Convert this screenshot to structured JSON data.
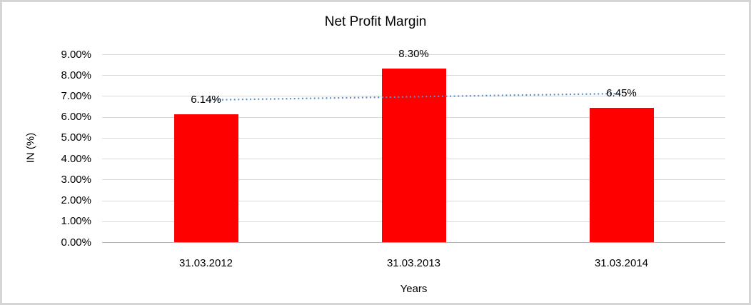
{
  "chart_data": {
    "type": "bar",
    "title": "Net Profit Margin",
    "xlabel": "Years",
    "ylabel": "IN (%)",
    "legend_position": "none",
    "grid": true,
    "ylim": [
      0,
      9
    ],
    "bar_color": "#FF0000",
    "gridline_color": "#D9D9D9",
    "axis_line_color": "#B3B3B3",
    "categories": [
      "31.03.2012",
      "31.03.2013",
      "31.03.2014"
    ],
    "values": [
      6.14,
      8.3,
      6.45
    ],
    "data_labels": [
      "6.14%",
      "8.30%",
      "6.45%"
    ],
    "yticks": [
      {
        "value": 9,
        "label": "9.00%"
      },
      {
        "value": 8,
        "label": "8.00%"
      },
      {
        "value": 7,
        "label": "7.00%"
      },
      {
        "value": 6,
        "label": "6.00%"
      },
      {
        "value": 5,
        "label": "5.00%"
      },
      {
        "value": 4,
        "label": "4.00%"
      },
      {
        "value": 3,
        "label": "3.00%"
      },
      {
        "value": 2,
        "label": "2.00%"
      },
      {
        "value": 1,
        "label": "1.00%"
      },
      {
        "value": 0,
        "label": "0.00%"
      }
    ],
    "trendline": {
      "type": "linear",
      "style": "dotted",
      "color": "#5B8FC9",
      "start_value": 6.81,
      "end_value": 7.12
    }
  }
}
